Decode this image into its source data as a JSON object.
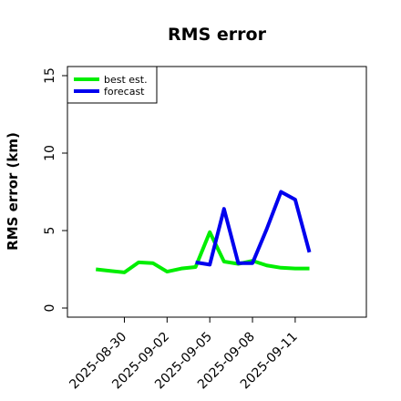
{
  "chart_data": {
    "type": "line",
    "title": "RMS error",
    "xlabel": "",
    "ylabel": "RMS error (km)",
    "x_dates": [
      "2025-08-28",
      "2025-08-29",
      "2025-08-30",
      "2025-08-31",
      "2025-09-01",
      "2025-09-02",
      "2025-09-03",
      "2025-09-04",
      "2025-09-05",
      "2025-09-06",
      "2025-09-07",
      "2025-09-08",
      "2025-09-09",
      "2025-09-10",
      "2025-09-11",
      "2025-09-12"
    ],
    "xlim": [
      "2025-08-26",
      "2025-09-16"
    ],
    "ylim": [
      0,
      15
    ],
    "x_ticks": [
      {
        "date": "2025-08-30",
        "label": "2025-08-30"
      },
      {
        "date": "2025-09-02",
        "label": "2025-09-02"
      },
      {
        "date": "2025-09-05",
        "label": "2025-09-05"
      },
      {
        "date": "2025-09-08",
        "label": "2025-09-08"
      },
      {
        "date": "2025-09-11",
        "label": "2025-09-11"
      }
    ],
    "y_ticks": [
      0,
      5,
      10,
      15
    ],
    "grid": false,
    "legend_position": "top-left",
    "series": [
      {
        "name": "best est.",
        "color": "#00ee00",
        "x": [
          "2025-08-28",
          "2025-08-29",
          "2025-08-30",
          "2025-08-31",
          "2025-09-01",
          "2025-09-02",
          "2025-09-03",
          "2025-09-04",
          "2025-09-05",
          "2025-09-06",
          "2025-09-07",
          "2025-09-08",
          "2025-09-09",
          "2025-09-10",
          "2025-09-11",
          "2025-09-12"
        ],
        "values": [
          2.5,
          2.4,
          2.3,
          2.95,
          2.9,
          2.35,
          2.55,
          2.65,
          4.9,
          3.0,
          2.85,
          3.05,
          2.75,
          2.6,
          2.55,
          2.55
        ]
      },
      {
        "name": "forecast",
        "color": "#0000ee",
        "x": [
          "2025-09-04",
          "2025-09-05",
          "2025-09-06",
          "2025-09-07",
          "2025-09-08",
          "2025-09-09",
          "2025-09-10",
          "2025-09-11",
          "2025-09-12"
        ],
        "values": [
          2.95,
          2.8,
          6.4,
          2.9,
          2.9,
          5.1,
          7.5,
          7.0,
          3.6
        ]
      }
    ]
  }
}
